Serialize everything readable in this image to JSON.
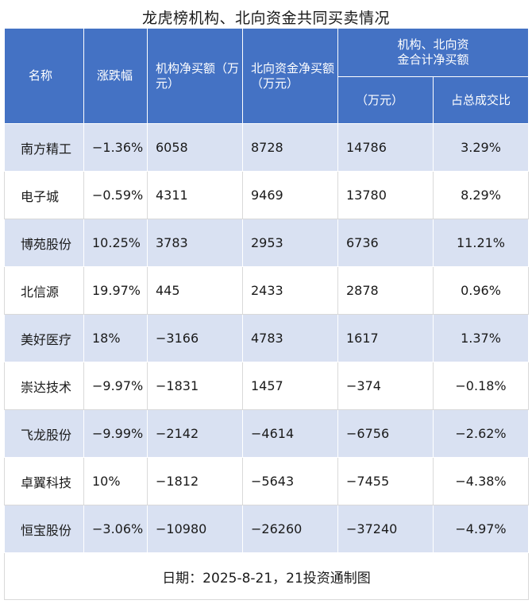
{
  "chart_data": {
    "type": "table",
    "title": "龙虎榜机构、北向资金共同买卖情况",
    "columns": {
      "name": "名称",
      "change": "涨跌幅",
      "inst": "机构净买额（万元）",
      "north": "北向资金净买额（万元）",
      "group": "机构、北向资金合计净买额",
      "sum": "（万元）",
      "ratio": "占总成交比"
    },
    "rows": [
      {
        "name": "南方精工",
        "change": "−1.36%",
        "inst": "6058",
        "north": "8728",
        "sum": "14786",
        "ratio": "3.29%"
      },
      {
        "name": "电子城",
        "change": "−0.59%",
        "inst": "4311",
        "north": "9469",
        "sum": "13780",
        "ratio": "8.29%"
      },
      {
        "name": "博苑股份",
        "change": "10.25%",
        "inst": "3783",
        "north": "2953",
        "sum": "6736",
        "ratio": "11.21%"
      },
      {
        "name": "北信源",
        "change": "19.97%",
        "inst": "445",
        "north": "2433",
        "sum": "2878",
        "ratio": "0.96%"
      },
      {
        "name": "美好医疗",
        "change": "18%",
        "inst": "−3166",
        "north": "4783",
        "sum": "1617",
        "ratio": "1.37%"
      },
      {
        "name": "崇达技术",
        "change": "−9.97%",
        "inst": "−1831",
        "north": "1457",
        "sum": "−374",
        "ratio": "−0.18%"
      },
      {
        "name": "飞龙股份",
        "change": "−9.99%",
        "inst": "−2142",
        "north": "−4614",
        "sum": "−6756",
        "ratio": "−2.62%"
      },
      {
        "name": "卓翼科技",
        "change": "10%",
        "inst": "−1812",
        "north": "−5643",
        "sum": "−7455",
        "ratio": "−4.38%"
      },
      {
        "name": "恒宝股份",
        "change": "−3.06%",
        "inst": "−10980",
        "north": "−26260",
        "sum": "−37240",
        "ratio": "−4.97%"
      }
    ],
    "footer": "日期：2025-8-21，21投资通制图"
  },
  "colors": {
    "header_bg": "#4472c4",
    "band": "#d9e1f2"
  }
}
